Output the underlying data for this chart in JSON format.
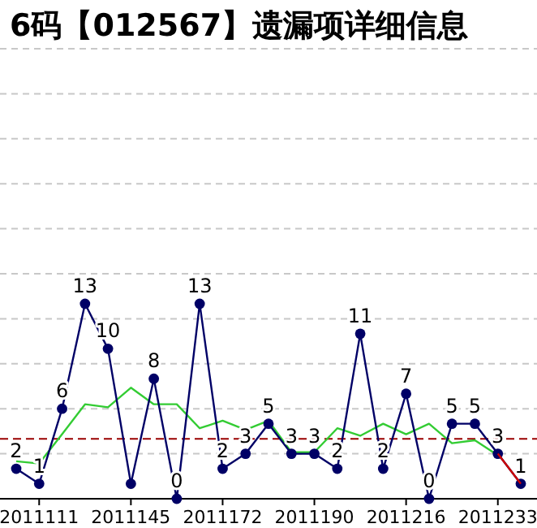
{
  "chart_data": {
    "type": "line",
    "title": "6码【012567】遗漏项详细信息",
    "categories": [
      null,
      "2011111",
      null,
      null,
      null,
      "2011145",
      null,
      null,
      null,
      "2011172",
      null,
      null,
      null,
      "2011190",
      null,
      null,
      null,
      "2011216",
      null,
      null,
      null,
      "2011233",
      null
    ],
    "series": [
      {
        "color": "#000066",
        "marker": "circle",
        "values": [
          2,
          1,
          6,
          13,
          10,
          1,
          8,
          0,
          13,
          2,
          3,
          5,
          3,
          3,
          2,
          11,
          2,
          7,
          0,
          5,
          5,
          3,
          1
        ],
        "value_labels": [
          "2",
          "1",
          "6",
          "13",
          "10",
          null,
          "8",
          "0",
          "13",
          "2",
          "3",
          "5",
          "3",
          "3",
          "2",
          "11",
          "2",
          "7",
          "0",
          "5",
          "5",
          "3",
          "1"
        ]
      },
      {
        "color": "#cc0000",
        "marker": "none",
        "values": [
          null,
          null,
          null,
          null,
          null,
          null,
          null,
          null,
          null,
          null,
          null,
          null,
          null,
          null,
          null,
          null,
          null,
          null,
          null,
          null,
          null,
          3,
          1
        ]
      },
      {
        "color": "#33cc33",
        "marker": "none",
        "values": [
          2.5,
          2.35,
          4.3,
          6.3,
          6.1,
          7.4,
          6.3,
          6.3,
          4.7,
          5.2,
          4.6,
          5.2,
          3.1,
          3.1,
          4.7,
          4.2,
          5.0,
          4.3,
          5.0,
          3.7,
          3.9,
          2.9,
          null
        ]
      }
    ],
    "ylim": [
      0,
      30
    ],
    "yticks": [
      {
        "value": 3,
        "label": null
      },
      {
        "value": 6,
        "label": null
      },
      {
        "value": 9,
        "label": null
      },
      {
        "value": 12,
        "label": null
      },
      {
        "value": 15,
        "label": null
      },
      {
        "value": 18,
        "label": null
      },
      {
        "value": 21,
        "label": null
      },
      {
        "value": 24,
        "label": null
      },
      {
        "value": 27,
        "label": null
      },
      {
        "value": 30,
        "label": null
      }
    ],
    "tick_labels": "x",
    "grid": "y",
    "line_style": "solid",
    "ref_lines": [
      {
        "axis": "y",
        "value": 4,
        "color": "#990000",
        "line_style": "dashed"
      }
    ]
  }
}
